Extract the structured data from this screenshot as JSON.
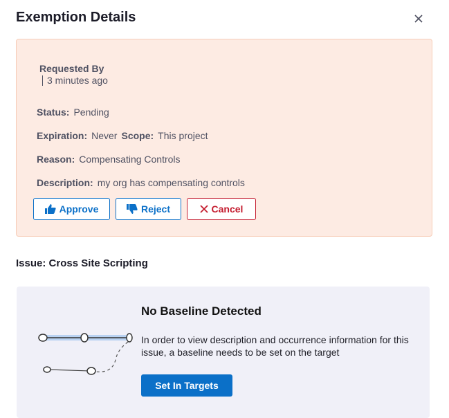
{
  "header": {
    "title": "Exemption Details",
    "close_icon": "close-icon"
  },
  "exemption": {
    "requested_by_label": "Requested By",
    "time_ago": "3 minutes ago",
    "status_label": "Status:",
    "status_value": "Pending",
    "expiration_label": "Expiration:",
    "expiration_value": "Never",
    "scope_label": "Scope:",
    "scope_value": "This project",
    "reason_label": "Reason:",
    "reason_value": "Compensating Controls",
    "description_label": "Description:",
    "description_value": "my org has compensating controls",
    "actions": {
      "approve": "Approve",
      "reject": "Reject",
      "cancel": "Cancel"
    },
    "colors": {
      "background": "#fdebe3",
      "primary": "#0b70c8",
      "danger": "#c41b2e"
    }
  },
  "issue": {
    "title": "Issue: Cross Site Scripting"
  },
  "baseline": {
    "heading": "No Baseline Detected",
    "message": "In order to view description and occurrence information for this issue, a baseline needs to be set on the target",
    "button": "Set In Targets"
  }
}
